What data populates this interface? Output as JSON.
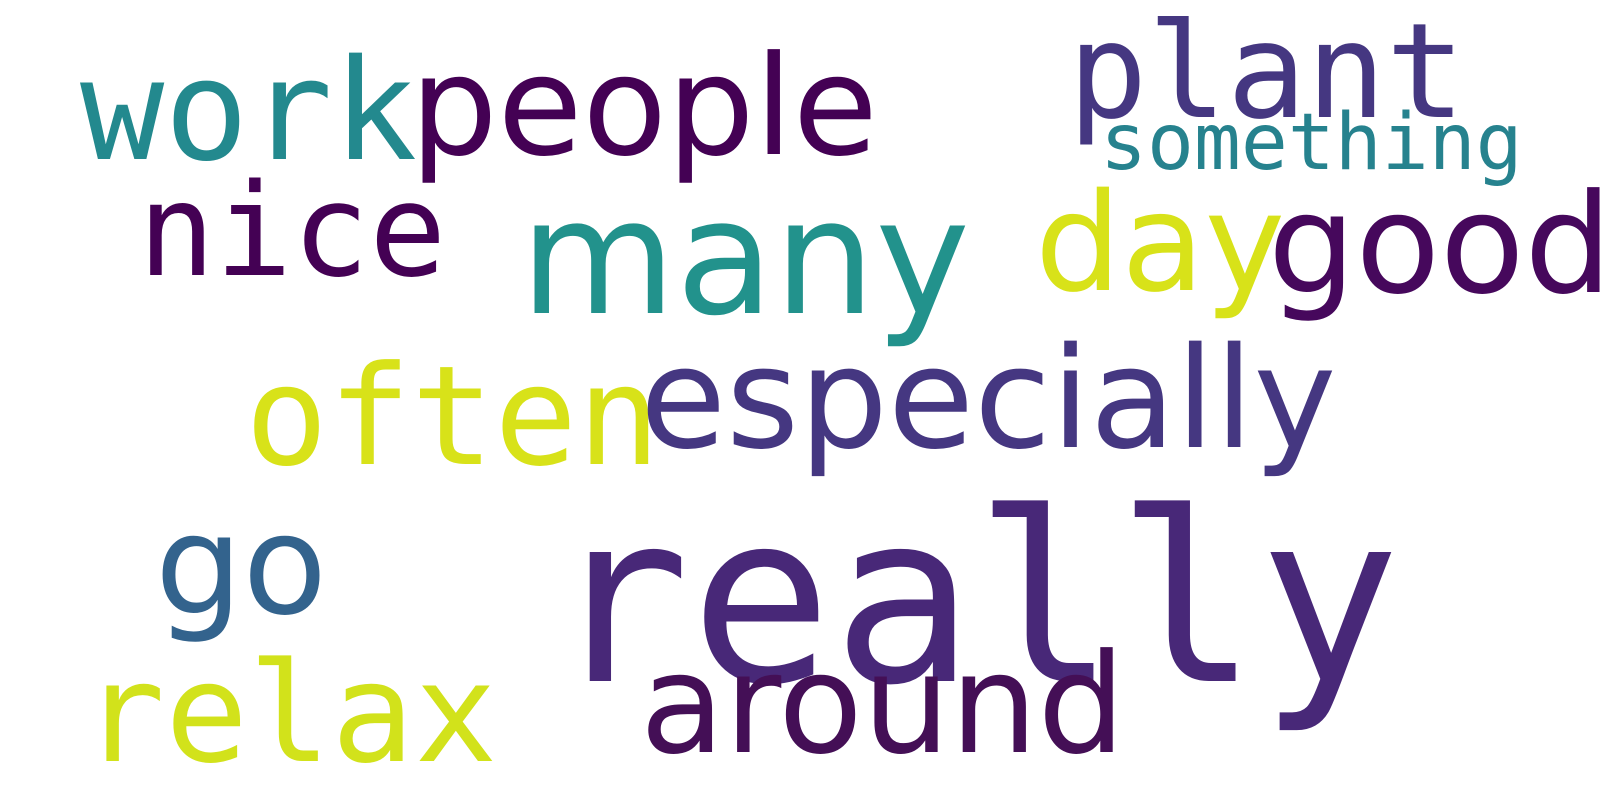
{
  "words": {
    "work": {
      "text": "work",
      "color": "#23898e"
    },
    "people": {
      "text": "people",
      "color": "#440154"
    },
    "plant": {
      "text": "plant",
      "color": "#453781"
    },
    "something": {
      "text": "something",
      "color": "#26828e"
    },
    "nice": {
      "text": "nice",
      "color": "#440154"
    },
    "many": {
      "text": "many",
      "color": "#22928c"
    },
    "day": {
      "text": "day",
      "color": "#d8e219"
    },
    "good": {
      "text": "good",
      "color": "#46085c"
    },
    "often": {
      "text": "often",
      "color": "#d8e219"
    },
    "especially": {
      "text": "especially",
      "color": "#453781"
    },
    "go": {
      "text": "go",
      "color": "#33638d"
    },
    "really": {
      "text": "really",
      "color": "#482878"
    },
    "relax": {
      "text": "relax",
      "color": "#d2e21b"
    },
    "around": {
      "text": "around",
      "color": "#440f56"
    }
  }
}
